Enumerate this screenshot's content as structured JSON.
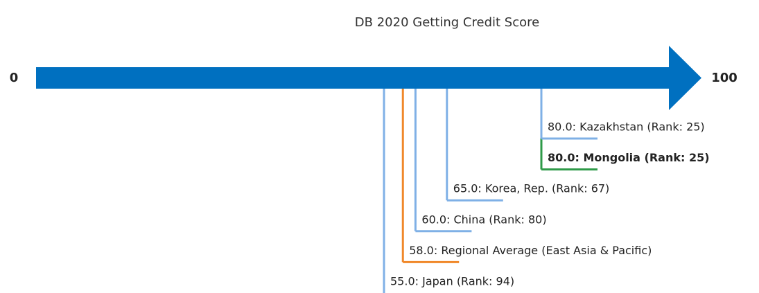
{
  "chart_data": {
    "type": "number-line",
    "title": "DB 2020 Getting Credit Score",
    "categories": [
      "80.0: Kazakhstan (Rank: 25)",
      "80.0: Mongolia (Rank: 25)",
      "65.0: Korea, Rep. (Rank: 67)",
      "60.0: China (Rank: 80)",
      "58.0: Regional Average (East Asia & Pacific)",
      "55.0: Japan (Rank: 94)"
    ],
    "values": [
      80,
      80,
      65,
      60,
      58,
      55
    ],
    "colors": [
      "#7fb0e6",
      "#2e9a48",
      "#7fb0e6",
      "#7fb0e6",
      "#f0882a",
      "#7fb0e6"
    ],
    "bold": [
      false,
      true,
      false,
      false,
      false,
      false
    ],
    "arrow_color": "#0070c0",
    "xlim": [
      0,
      100
    ],
    "xticks": [
      0,
      100
    ]
  }
}
